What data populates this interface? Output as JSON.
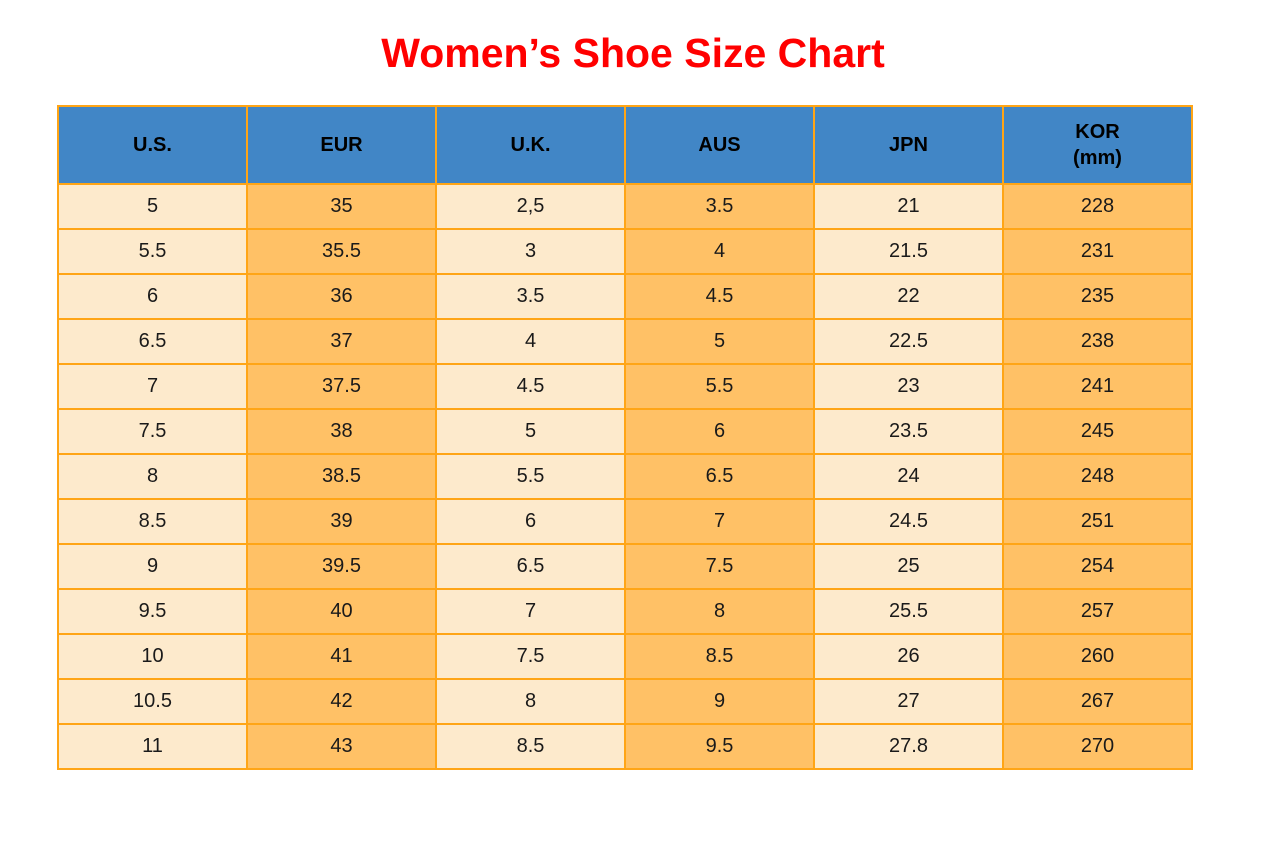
{
  "title": "Women’s Shoe Size Chart",
  "colors": {
    "title": "#FF0000",
    "header_bg": "#4186C6",
    "header_text": "#000000",
    "cell_cream": "#FDEACC",
    "cell_orange": "#FFC166",
    "border": "#FFA516",
    "cell_text": "#1A1A1A"
  },
  "column_pattern": [
    "cream",
    "orange",
    "cream",
    "orange",
    "cream",
    "orange"
  ],
  "chart_data": {
    "type": "table",
    "title": "Women’s Shoe Size Chart",
    "columns": [
      {
        "label": "U.S.",
        "sublabel": ""
      },
      {
        "label": "EUR",
        "sublabel": ""
      },
      {
        "label": "U.K.",
        "sublabel": ""
      },
      {
        "label": "AUS",
        "sublabel": ""
      },
      {
        "label": "JPN",
        "sublabel": ""
      },
      {
        "label": "KOR",
        "sublabel": "(mm)"
      }
    ],
    "rows": [
      [
        "5",
        "35",
        "2,5",
        "3.5",
        "21",
        "228"
      ],
      [
        "5.5",
        "35.5",
        "3",
        "4",
        "21.5",
        "231"
      ],
      [
        "6",
        "36",
        "3.5",
        "4.5",
        "22",
        "235"
      ],
      [
        "6.5",
        "37",
        "4",
        "5",
        "22.5",
        "238"
      ],
      [
        "7",
        "37.5",
        "4.5",
        "5.5",
        "23",
        "241"
      ],
      [
        "7.5",
        "38",
        "5",
        "6",
        "23.5",
        "245"
      ],
      [
        "8",
        "38.5",
        "5.5",
        "6.5",
        "24",
        "248"
      ],
      [
        "8.5",
        "39",
        "6",
        "7",
        "24.5",
        "251"
      ],
      [
        "9",
        "39.5",
        "6.5",
        "7.5",
        "25",
        "254"
      ],
      [
        "9.5",
        "40",
        "7",
        "8",
        "25.5",
        "257"
      ],
      [
        "10",
        "41",
        "7.5",
        "8.5",
        "26",
        "260"
      ],
      [
        "10.5",
        "42",
        "8",
        "9",
        "27",
        "267"
      ],
      [
        "11",
        "43",
        "8.5",
        "9.5",
        "27.8",
        "270"
      ]
    ]
  }
}
